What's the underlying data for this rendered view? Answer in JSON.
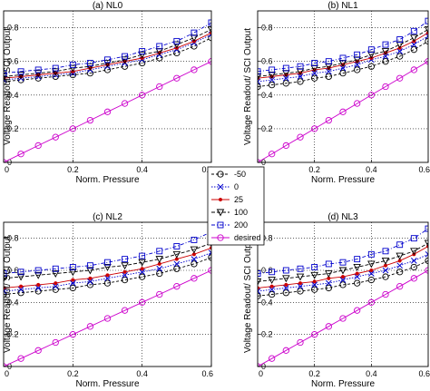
{
  "chart_data": [
    {
      "type": "line",
      "title": "(a) NL0",
      "xlabel": "Norm. Pressure",
      "ylabel": "Voltage Readout/ SCI Output",
      "xlim": [
        0,
        0.6
      ],
      "ylim": [
        0,
        0.9
      ],
      "xticks": [
        "0",
        "0.2",
        "0.4",
        "0.6"
      ],
      "yticks": [
        "0",
        "0.2",
        "0.4",
        "0.6",
        "0.8"
      ],
      "grid": true,
      "x": [
        0,
        0.05,
        0.1,
        0.15,
        0.2,
        0.25,
        0.3,
        0.35,
        0.4,
        0.45,
        0.5,
        0.55,
        0.6
      ],
      "series": [
        {
          "name": "-50",
          "marker": "circle",
          "color": "#000000",
          "values": [
            0.48,
            0.49,
            0.5,
            0.51,
            0.52,
            0.53,
            0.55,
            0.57,
            0.59,
            0.62,
            0.65,
            0.69,
            0.74
          ]
        },
        {
          "name": "0",
          "marker": "x",
          "color": "#0000cc",
          "values": [
            0.49,
            0.5,
            0.51,
            0.52,
            0.53,
            0.55,
            0.57,
            0.59,
            0.61,
            0.64,
            0.67,
            0.71,
            0.76
          ]
        },
        {
          "name": "25",
          "marker": "dot",
          "color": "#cc0000",
          "values": [
            0.5,
            0.51,
            0.52,
            0.53,
            0.54,
            0.56,
            0.58,
            0.6,
            0.62,
            0.65,
            0.68,
            0.72,
            0.77
          ]
        },
        {
          "name": "100",
          "marker": "triangle-down",
          "color": "#000000",
          "values": [
            0.51,
            0.52,
            0.53,
            0.54,
            0.56,
            0.57,
            0.59,
            0.61,
            0.64,
            0.66,
            0.7,
            0.74,
            0.79
          ]
        },
        {
          "name": "200",
          "marker": "square",
          "color": "#0000cc",
          "values": [
            0.53,
            0.54,
            0.55,
            0.56,
            0.58,
            0.59,
            0.61,
            0.63,
            0.66,
            0.69,
            0.72,
            0.77,
            0.83
          ]
        },
        {
          "name": "desired",
          "marker": "circle",
          "color": "#cc00cc",
          "values": [
            0,
            0.05,
            0.1,
            0.15,
            0.2,
            0.25,
            0.3,
            0.35,
            0.4,
            0.45,
            0.5,
            0.55,
            0.6
          ]
        }
      ]
    },
    {
      "type": "line",
      "title": "(b) NL1",
      "xlabel": "Norm. Pressure",
      "ylabel": "Voltage Readout/ SCI Output",
      "xlim": [
        0,
        0.6
      ],
      "ylim": [
        0,
        0.9
      ],
      "xticks": [
        "0",
        "0.2",
        "0.4",
        "0.6"
      ],
      "yticks": [
        "0",
        "0.2",
        "0.4",
        "0.6",
        "0.8"
      ],
      "grid": true,
      "x": [
        0,
        0.05,
        0.1,
        0.15,
        0.2,
        0.25,
        0.3,
        0.35,
        0.4,
        0.45,
        0.5,
        0.55,
        0.6
      ],
      "series": [
        {
          "name": "-50",
          "marker": "circle",
          "color": "#000000",
          "values": [
            0.45,
            0.46,
            0.47,
            0.48,
            0.5,
            0.51,
            0.53,
            0.55,
            0.57,
            0.6,
            0.63,
            0.67,
            0.72
          ]
        },
        {
          "name": "0",
          "marker": "x",
          "color": "#0000cc",
          "values": [
            0.48,
            0.49,
            0.5,
            0.51,
            0.53,
            0.54,
            0.56,
            0.58,
            0.61,
            0.63,
            0.66,
            0.7,
            0.75
          ]
        },
        {
          "name": "25",
          "marker": "dot",
          "color": "#cc0000",
          "values": [
            0.5,
            0.51,
            0.52,
            0.53,
            0.55,
            0.56,
            0.58,
            0.6,
            0.62,
            0.65,
            0.68,
            0.72,
            0.77
          ]
        },
        {
          "name": "100",
          "marker": "triangle-down",
          "color": "#000000",
          "values": [
            0.51,
            0.52,
            0.53,
            0.54,
            0.56,
            0.57,
            0.59,
            0.61,
            0.64,
            0.66,
            0.7,
            0.74,
            0.79
          ]
        },
        {
          "name": "200",
          "marker": "square",
          "color": "#0000cc",
          "values": [
            0.54,
            0.55,
            0.56,
            0.57,
            0.59,
            0.6,
            0.62,
            0.64,
            0.67,
            0.7,
            0.73,
            0.78,
            0.84
          ]
        },
        {
          "name": "desired",
          "marker": "circle",
          "color": "#cc00cc",
          "values": [
            0,
            0.05,
            0.1,
            0.15,
            0.2,
            0.25,
            0.3,
            0.35,
            0.4,
            0.45,
            0.5,
            0.55,
            0.6
          ]
        }
      ]
    },
    {
      "type": "line",
      "title": "(c) NL2",
      "xlabel": "Norm. Pressure",
      "ylabel": "Voltage Readout/ SCI Output",
      "xlim": [
        0,
        0.6
      ],
      "ylim": [
        0,
        0.9
      ],
      "xticks": [
        "0",
        "0.2",
        "0.4",
        "0.6"
      ],
      "yticks": [
        "0",
        "0.2",
        "0.4",
        "0.6",
        "0.8"
      ],
      "grid": true,
      "x": [
        0,
        0.05,
        0.1,
        0.15,
        0.2,
        0.25,
        0.3,
        0.35,
        0.4,
        0.45,
        0.5,
        0.55,
        0.6
      ],
      "series": [
        {
          "name": "-50",
          "marker": "circle",
          "color": "#000000",
          "values": [
            0.45,
            0.46,
            0.47,
            0.48,
            0.49,
            0.51,
            0.52,
            0.54,
            0.56,
            0.58,
            0.61,
            0.64,
            0.68
          ]
        },
        {
          "name": "0",
          "marker": "x",
          "color": "#0000cc",
          "values": [
            0.47,
            0.48,
            0.49,
            0.5,
            0.52,
            0.53,
            0.55,
            0.57,
            0.59,
            0.61,
            0.64,
            0.67,
            0.71
          ]
        },
        {
          "name": "25",
          "marker": "dot",
          "color": "#cc0000",
          "values": [
            0.49,
            0.5,
            0.51,
            0.52,
            0.54,
            0.55,
            0.57,
            0.59,
            0.61,
            0.64,
            0.67,
            0.7,
            0.74
          ]
        },
        {
          "name": "100",
          "marker": "triangle-down",
          "color": "#000000",
          "values": [
            0.55,
            0.56,
            0.57,
            0.58,
            0.59,
            0.6,
            0.62,
            0.63,
            0.65,
            0.67,
            0.7,
            0.73,
            0.77
          ]
        },
        {
          "name": "200",
          "marker": "square",
          "color": "#0000cc",
          "values": [
            0.58,
            0.59,
            0.6,
            0.61,
            0.62,
            0.63,
            0.65,
            0.67,
            0.69,
            0.72,
            0.75,
            0.79,
            0.84
          ]
        },
        {
          "name": "desired",
          "marker": "circle",
          "color": "#cc00cc",
          "values": [
            0,
            0.05,
            0.1,
            0.15,
            0.2,
            0.25,
            0.3,
            0.35,
            0.4,
            0.45,
            0.5,
            0.55,
            0.6
          ]
        }
      ]
    },
    {
      "type": "line",
      "title": "(d) NL3",
      "xlabel": "Norm. Pressure",
      "ylabel": "Voltage Readout/ SCI Output",
      "xlim": [
        0,
        0.6
      ],
      "ylim": [
        0,
        0.9
      ],
      "xticks": [
        "0",
        "0.2",
        "0.4",
        "0.6"
      ],
      "yticks": [
        "0",
        "0.2",
        "0.4",
        "0.6",
        "0.8"
      ],
      "grid": true,
      "x": [
        0,
        0.05,
        0.1,
        0.15,
        0.2,
        0.25,
        0.3,
        0.35,
        0.4,
        0.45,
        0.5,
        0.55,
        0.6
      ],
      "series": [
        {
          "name": "-50",
          "marker": "circle",
          "color": "#000000",
          "values": [
            0.44,
            0.45,
            0.46,
            0.47,
            0.48,
            0.49,
            0.51,
            0.52,
            0.54,
            0.56,
            0.59,
            0.62,
            0.66
          ]
        },
        {
          "name": "0",
          "marker": "x",
          "color": "#0000cc",
          "values": [
            0.47,
            0.48,
            0.49,
            0.5,
            0.51,
            0.52,
            0.54,
            0.56,
            0.58,
            0.6,
            0.63,
            0.66,
            0.7
          ]
        },
        {
          "name": "25",
          "marker": "dot",
          "color": "#cc0000",
          "values": [
            0.49,
            0.5,
            0.51,
            0.52,
            0.53,
            0.55,
            0.56,
            0.58,
            0.6,
            0.63,
            0.66,
            0.7,
            0.75
          ]
        },
        {
          "name": "100",
          "marker": "triangle-down",
          "color": "#000000",
          "values": [
            0.53,
            0.54,
            0.55,
            0.56,
            0.57,
            0.58,
            0.6,
            0.62,
            0.64,
            0.66,
            0.69,
            0.72,
            0.77
          ]
        },
        {
          "name": "200",
          "marker": "square",
          "color": "#0000cc",
          "values": [
            0.58,
            0.59,
            0.6,
            0.61,
            0.62,
            0.64,
            0.65,
            0.67,
            0.7,
            0.72,
            0.76,
            0.8,
            0.86
          ]
        },
        {
          "name": "desired",
          "marker": "circle",
          "color": "#cc00cc",
          "values": [
            0,
            0.05,
            0.1,
            0.15,
            0.2,
            0.25,
            0.3,
            0.35,
            0.4,
            0.45,
            0.5,
            0.55,
            0.6
          ]
        }
      ]
    }
  ],
  "legend": {
    "placement": "center",
    "entries": [
      {
        "label": "-50",
        "marker": "circle",
        "color": "#000000"
      },
      {
        "label": "0",
        "marker": "x",
        "color": "#0000cc"
      },
      {
        "label": "25",
        "marker": "dot",
        "color": "#cc0000"
      },
      {
        "label": "100",
        "marker": "triangle-down",
        "color": "#000000"
      },
      {
        "label": "200",
        "marker": "square",
        "color": "#0000cc"
      },
      {
        "label": "desired",
        "marker": "circle",
        "color": "#cc00cc"
      }
    ]
  }
}
